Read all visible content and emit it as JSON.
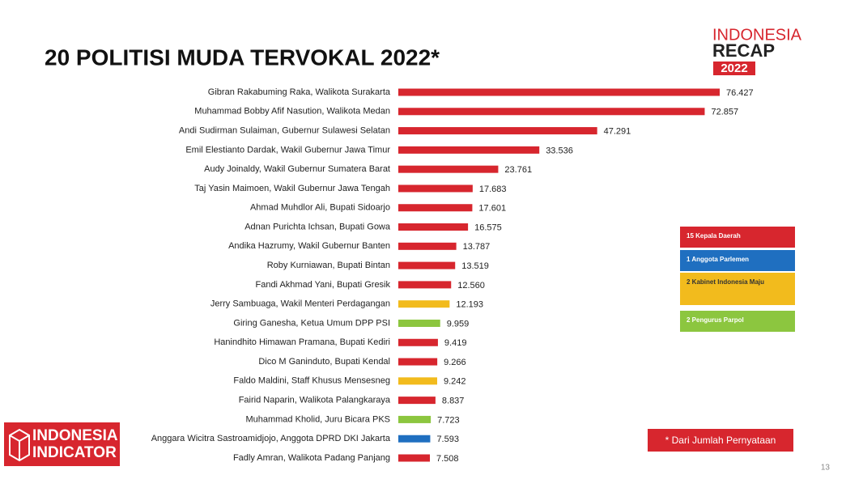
{
  "chart_data": {
    "type": "bar",
    "orientation": "horizontal",
    "title": "20 POLITISI MUDA TERVOKAL 2022*",
    "categories": [
      "Gibran Rakabuming Raka, Walikota Surakarta",
      "Muhammad Bobby Afif Nasution, Walikota Medan",
      "Andi Sudirman Sulaiman, Gubernur Sulawesi Selatan",
      "Emil Elestianto Dardak, Wakil Gubernur Jawa Timur",
      "Audy Joinaldy, Wakil Gubernur Sumatera Barat",
      "Taj Yasin Maimoen, Wakil Gubernur Jawa Tengah",
      "Ahmad Muhdlor Ali, Bupati Sidoarjo",
      "Adnan Purichta Ichsan, Bupati Gowa",
      "Andika Hazrumy, Wakil Gubernur Banten",
      "Roby Kurniawan, Bupati Bintan",
      "Fandi Akhmad Yani, Bupati Gresik",
      "Jerry Sambuaga, Wakil Menteri Perdagangan",
      "Giring Ganesha, Ketua Umum DPP PSI",
      "Hanindhito Himawan Pramana, Bupati Kediri",
      "Dico M Ganinduto, Bupati Kendal",
      "Faldo Maldini, Staff Khusus Mensesneg",
      "Fairid Naparin, Walikota Palangkaraya",
      "Muhammad Kholid, Juru Bicara PKS",
      "Anggara Wicitra Sastroamidjojo, Anggota DPRD DKI Jakarta",
      "Fadly Amran, Walikota Padang Panjang"
    ],
    "values": [
      76.427,
      72.857,
      47.291,
      33.536,
      23.761,
      17.683,
      17.601,
      16.575,
      13.787,
      13.519,
      12.56,
      12.193,
      9.959,
      9.419,
      9.266,
      9.242,
      8.837,
      7.723,
      7.593,
      7.508
    ],
    "value_labels": [
      "76.427",
      "72.857",
      "47.291",
      "33.536",
      "23.761",
      "17.683",
      "17.601",
      "16.575",
      "13.787",
      "13.519",
      "12.560",
      "12.193",
      "9.959",
      "9.419",
      "9.266",
      "9.242",
      "8.837",
      "7.723",
      "7.593",
      "7.508"
    ],
    "colors": [
      "#d7262e",
      "#d7262e",
      "#d7262e",
      "#d7262e",
      "#d7262e",
      "#d7262e",
      "#d7262e",
      "#d7262e",
      "#d7262e",
      "#d7262e",
      "#d7262e",
      "#f2bb1d",
      "#8cc63f",
      "#d7262e",
      "#d7262e",
      "#f2bb1d",
      "#d7262e",
      "#8cc63f",
      "#1f6fc0",
      "#d7262e"
    ],
    "legend": [
      {
        "label": "15 Kepala Daerah",
        "color": "#d7262e"
      },
      {
        "label": "1 Anggota Parlemen",
        "color": "#1f6fc0"
      },
      {
        "label": "2 Kabinet Indonesia Maju",
        "color": "#f2bb1d"
      },
      {
        "label": "2 Pengurus Parpol",
        "color": "#8cc63f"
      }
    ],
    "note": "* Dari Jumlah Pernyataan"
  },
  "logo_top": {
    "line1": "INDONESIA",
    "line2": "RECAP",
    "year": "2022"
  },
  "logo_bottom": {
    "line1": "INDONESIA",
    "line2": "INDICATOR"
  },
  "page_number": "13"
}
